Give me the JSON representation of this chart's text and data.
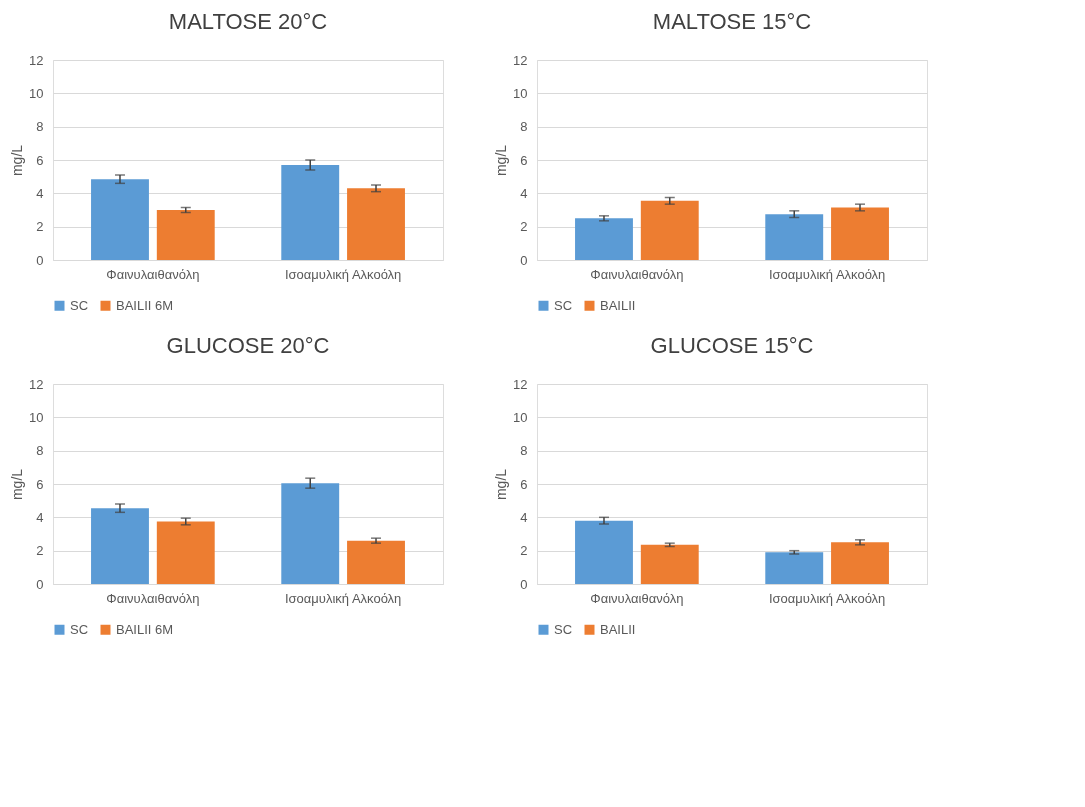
{
  "chart_data": [
    {
      "type": "bar",
      "title": "MALTOSE 20°C",
      "ylabel": "mg/L",
      "categories": [
        "Φαινυλαιθανόλη",
        "Ισοαμυλική Αλκοόλη"
      ],
      "ylim": [
        0,
        12
      ],
      "yticks": [
        0,
        2,
        4,
        6,
        8,
        10,
        12
      ],
      "grid": "y",
      "legend": "bottom",
      "series": [
        {
          "name": "SC",
          "color": "#5b9bd5",
          "values": [
            4.85,
            5.7
          ],
          "errors": [
            0.25,
            0.3
          ]
        },
        {
          "name": "BAILII 6M",
          "color": "#ed7d31",
          "values": [
            3.0,
            4.3
          ],
          "errors": [
            0.15,
            0.2
          ]
        }
      ]
    },
    {
      "type": "bar",
      "title": "MALTOSE 15°C",
      "ylabel": "mg/L",
      "categories": [
        "Φαινυλαιθανόλη",
        "Ισοαμυλική Αλκοόλη"
      ],
      "ylim": [
        0,
        12
      ],
      "yticks": [
        0,
        2,
        4,
        6,
        8,
        10,
        12
      ],
      "grid": "y",
      "legend": "bottom",
      "series": [
        {
          "name": "SC",
          "color": "#5b9bd5",
          "values": [
            2.5,
            2.75
          ],
          "errors": [
            0.15,
            0.2
          ]
        },
        {
          "name": "BAILII",
          "color": "#ed7d31",
          "values": [
            3.55,
            3.15
          ],
          "errors": [
            0.2,
            0.2
          ]
        }
      ]
    },
    {
      "type": "bar",
      "title": "GLUCOSE 20°C",
      "ylabel": "mg/L",
      "categories": [
        "Φαινυλαιθανόλη",
        "Ισοαμυλική Αλκοόλη"
      ],
      "ylim": [
        0,
        12
      ],
      "yticks": [
        0,
        2,
        4,
        6,
        8,
        10,
        12
      ],
      "grid": "y",
      "legend": "bottom",
      "series": [
        {
          "name": "SC",
          "color": "#5b9bd5",
          "values": [
            4.55,
            6.05
          ],
          "errors": [
            0.25,
            0.3
          ]
        },
        {
          "name": "BAILII 6M",
          "color": "#ed7d31",
          "values": [
            3.75,
            2.6
          ],
          "errors": [
            0.2,
            0.15
          ]
        }
      ]
    },
    {
      "type": "bar",
      "title": "GLUCOSE 15°C",
      "ylabel": "mg/L",
      "categories": [
        "Φαινυλαιθανόλη",
        "Ισοαμυλική Αλκοόλη"
      ],
      "ylim": [
        0,
        12
      ],
      "yticks": [
        0,
        2,
        4,
        6,
        8,
        10,
        12
      ],
      "grid": "y",
      "legend": "bottom",
      "series": [
        {
          "name": "SC",
          "color": "#5b9bd5",
          "values": [
            3.8,
            1.9
          ],
          "errors": [
            0.2,
            0.1
          ]
        },
        {
          "name": "BAILII",
          "color": "#ed7d31",
          "values": [
            2.35,
            2.5
          ],
          "errors": [
            0.1,
            0.15
          ]
        }
      ]
    }
  ]
}
